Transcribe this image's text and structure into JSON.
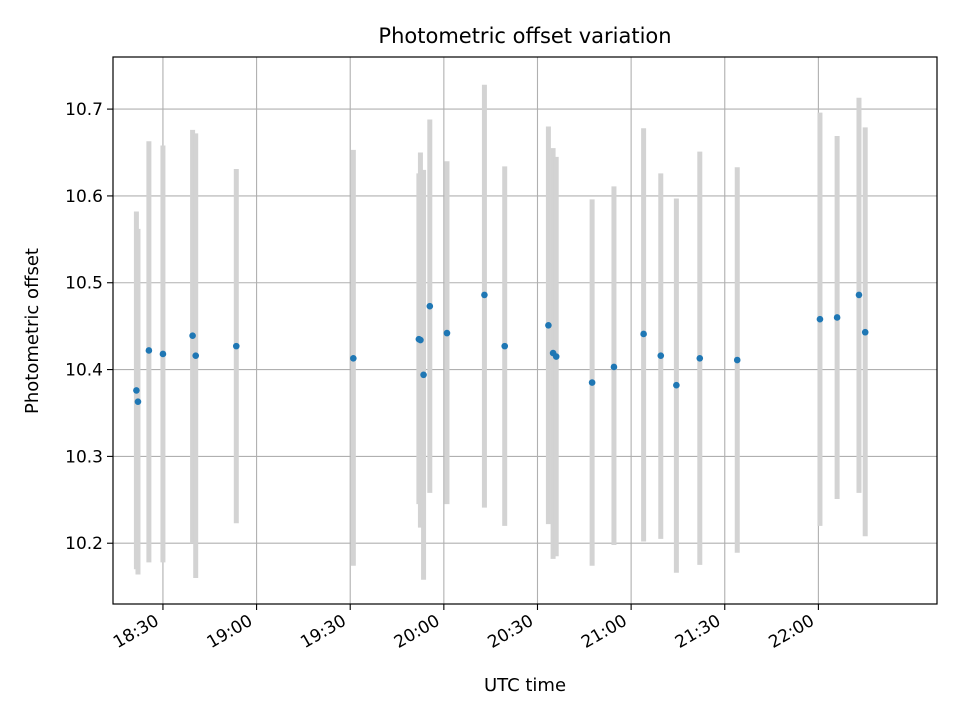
{
  "chart_data": {
    "type": "scatter",
    "title": "Photometric offset variation",
    "xlabel": "UTC time",
    "ylabel": "Photometric offset",
    "grid": true,
    "x_axis": "time (HH:MM UTC)",
    "xlim": [
      "18:14",
      "22:38"
    ],
    "ylim": [
      10.13,
      10.76
    ],
    "x_ticks": [
      "18:30",
      "19:00",
      "19:30",
      "20:00",
      "20:30",
      "21:00",
      "21:30",
      "22:00"
    ],
    "y_ticks": [
      10.2,
      10.3,
      10.4,
      10.5,
      10.6,
      10.7
    ],
    "colors": {
      "point": "#1f77b4",
      "errorbar": "#d3d3d3",
      "grid": "#b0b0b0"
    },
    "points": [
      {
        "x": "18:21:30",
        "y": 10.376,
        "low": 10.17,
        "high": 10.582
      },
      {
        "x": "18:22:00",
        "y": 10.363,
        "low": 10.164,
        "high": 10.562
      },
      {
        "x": "18:25:30",
        "y": 10.422,
        "low": 10.178,
        "high": 10.663
      },
      {
        "x": "18:30:00",
        "y": 10.418,
        "low": 10.178,
        "high": 10.658
      },
      {
        "x": "18:39:30",
        "y": 10.439,
        "low": 10.2,
        "high": 10.676
      },
      {
        "x": "18:40:30",
        "y": 10.416,
        "low": 10.16,
        "high": 10.672
      },
      {
        "x": "18:53:30",
        "y": 10.427,
        "low": 10.223,
        "high": 10.631
      },
      {
        "x": "19:31:00",
        "y": 10.413,
        "low": 10.174,
        "high": 10.653
      },
      {
        "x": "19:52:00",
        "y": 10.435,
        "low": 10.245,
        "high": 10.626
      },
      {
        "x": "19:52:30",
        "y": 10.434,
        "low": 10.218,
        "high": 10.65
      },
      {
        "x": "19:53:30",
        "y": 10.394,
        "low": 10.158,
        "high": 10.63
      },
      {
        "x": "19:55:30",
        "y": 10.473,
        "low": 10.258,
        "high": 10.688
      },
      {
        "x": "20:01:00",
        "y": 10.442,
        "low": 10.245,
        "high": 10.64
      },
      {
        "x": "20:13:00",
        "y": 10.486,
        "low": 10.241,
        "high": 10.728
      },
      {
        "x": "20:19:30",
        "y": 10.427,
        "low": 10.22,
        "high": 10.634
      },
      {
        "x": "20:33:30",
        "y": 10.451,
        "low": 10.222,
        "high": 10.68
      },
      {
        "x": "20:35:00",
        "y": 10.419,
        "low": 10.182,
        "high": 10.655
      },
      {
        "x": "20:36:00",
        "y": 10.415,
        "low": 10.185,
        "high": 10.645
      },
      {
        "x": "20:47:30",
        "y": 10.385,
        "low": 10.174,
        "high": 10.596
      },
      {
        "x": "20:54:30",
        "y": 10.403,
        "low": 10.198,
        "high": 10.611
      },
      {
        "x": "21:04:00",
        "y": 10.441,
        "low": 10.202,
        "high": 10.678
      },
      {
        "x": "21:09:30",
        "y": 10.416,
        "low": 10.205,
        "high": 10.626
      },
      {
        "x": "21:14:30",
        "y": 10.382,
        "low": 10.166,
        "high": 10.597
      },
      {
        "x": "21:22:00",
        "y": 10.413,
        "low": 10.175,
        "high": 10.651
      },
      {
        "x": "21:34:00",
        "y": 10.411,
        "low": 10.189,
        "high": 10.633
      },
      {
        "x": "22:00:30",
        "y": 10.458,
        "low": 10.22,
        "high": 10.696
      },
      {
        "x": "22:06:00",
        "y": 10.46,
        "low": 10.251,
        "high": 10.669
      },
      {
        "x": "22:13:00",
        "y": 10.486,
        "low": 10.258,
        "high": 10.713
      },
      {
        "x": "22:15:00",
        "y": 10.443,
        "low": 10.208,
        "high": 10.679
      }
    ]
  }
}
